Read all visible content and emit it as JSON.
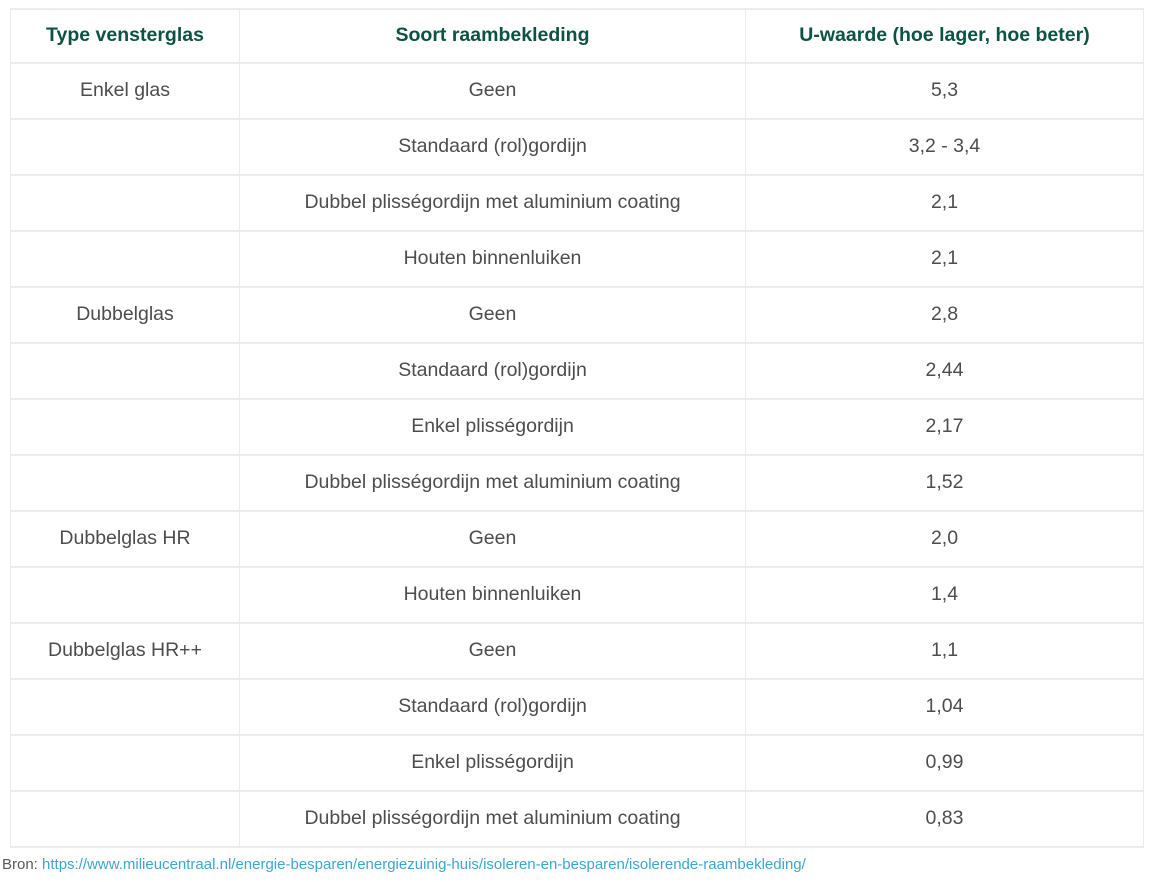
{
  "table": {
    "columns": [
      "Type vensterglas",
      "Soort raambekleding",
      "U-waarde (hoe lager, hoe beter)"
    ],
    "rows": [
      {
        "glass": "Enkel glas",
        "covering": "Geen",
        "u_value": "5,3"
      },
      {
        "glass": "",
        "covering": "Standaard (rol)gordijn",
        "u_value": "3,2 - 3,4"
      },
      {
        "glass": "",
        "covering": "Dubbel plisségordijn met aluminium coating",
        "u_value": "2,1"
      },
      {
        "glass": "",
        "covering": "Houten binnenluiken",
        "u_value": "2,1"
      },
      {
        "glass": "Dubbelglas",
        "covering": "Geen",
        "u_value": "2,8"
      },
      {
        "glass": "",
        "covering": "Standaard (rol)gordijn",
        "u_value": "2,44"
      },
      {
        "glass": "",
        "covering": "Enkel plisségordijn",
        "u_value": "2,17"
      },
      {
        "glass": "",
        "covering": "Dubbel plisségordijn met aluminium coating",
        "u_value": "1,52"
      },
      {
        "glass": "Dubbelglas HR",
        "covering": "Geen",
        "u_value": "2,0"
      },
      {
        "glass": "",
        "covering": "Houten binnenluiken",
        "u_value": "1,4"
      },
      {
        "glass": "Dubbelglas HR++",
        "covering": "Geen",
        "u_value": "1,1"
      },
      {
        "glass": "",
        "covering": "Standaard (rol)gordijn",
        "u_value": "1,04"
      },
      {
        "glass": "",
        "covering": "Enkel plisségordijn",
        "u_value": "0,99"
      },
      {
        "glass": "",
        "covering": "Dubbel plisségordijn met aluminium coating",
        "u_value": "0,83"
      }
    ]
  },
  "footer": {
    "source_label": "Bron:",
    "source_url": "https://www.milieucentraal.nl/energie-besparen/energiezuinig-huis/isoleren-en-besparen/isolerende-raambekleding/"
  },
  "colors": {
    "header_text": "#0a5345",
    "body_text": "#4d4d4d",
    "border": "#ececec",
    "link": "#3da6cf"
  }
}
